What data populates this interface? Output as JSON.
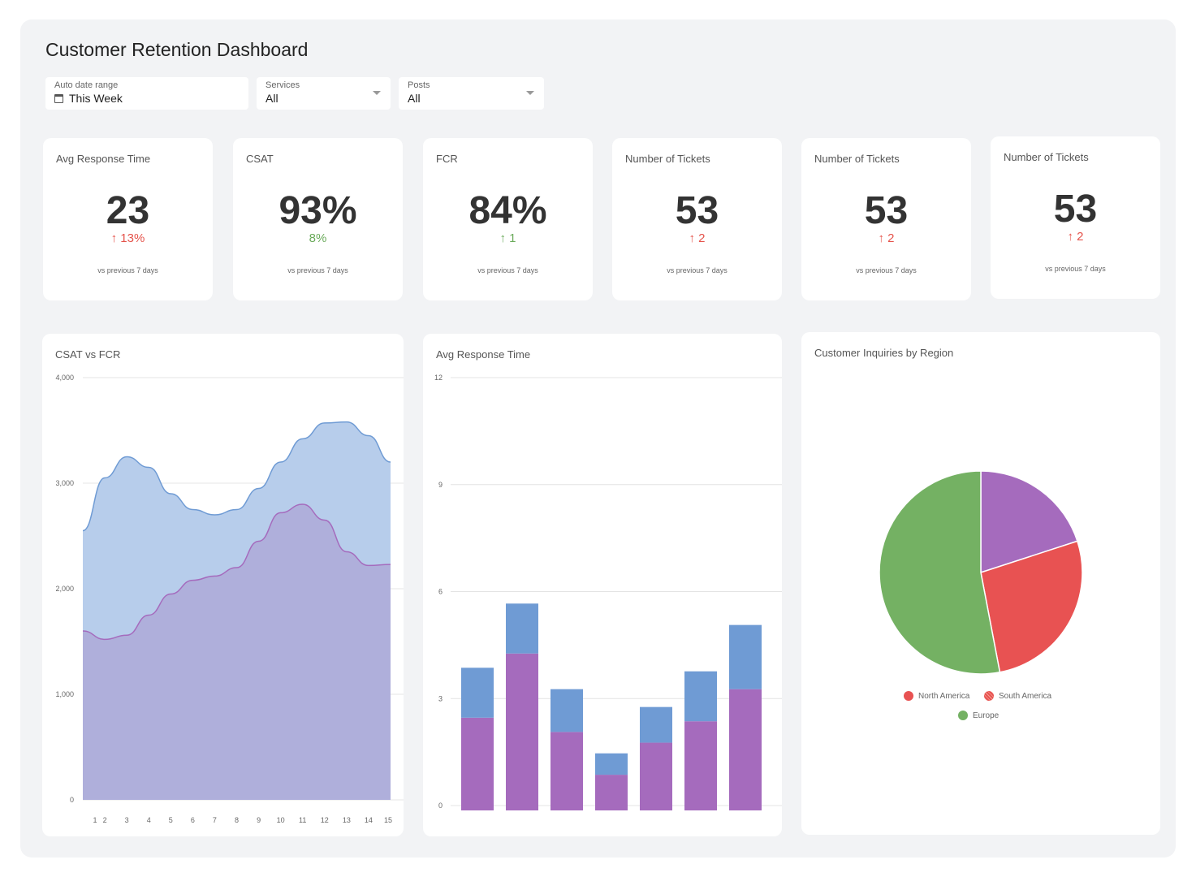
{
  "title": "Customer Retention Dashboard",
  "filters": [
    {
      "label": "Auto date range",
      "value": "This Week",
      "icon": "calendar-icon"
    },
    {
      "label": "Services",
      "value": "All"
    },
    {
      "label": "Posts",
      "value": "All"
    }
  ],
  "kpis": [
    {
      "title": "Avg Response Time",
      "value": "23",
      "delta": "↑ 13%",
      "trend": "bad",
      "sub": "vs previous 7 days"
    },
    {
      "title": "CSAT",
      "value": "93%",
      "delta": "8%",
      "trend": "good",
      "sub": "vs previous 7 days"
    },
    {
      "title": "FCR",
      "value": "84%",
      "delta": "↑ 1",
      "trend": "good",
      "sub": "vs previous 7 days"
    },
    {
      "title": "Number of Tickets",
      "value": "53",
      "delta": "↑ 2",
      "trend": "bad",
      "sub": "vs previous 7 days"
    },
    {
      "title": "Number of Tickets",
      "value": "53",
      "delta": "↑ 2",
      "trend": "bad",
      "sub": "vs previous 7 days"
    },
    {
      "title": "Number of Tickets",
      "value": "53",
      "delta": "↑ 2",
      "trend": "bad",
      "sub": "vs previous 7 days"
    }
  ],
  "colors": {
    "bad": "#e5534b",
    "good": "#6aaa5a",
    "blue": "#6f9bd4",
    "purple": "#a56bbd",
    "red": "#e85252",
    "green": "#74b163"
  },
  "chart_data": [
    {
      "type": "area",
      "title": "CSAT vs FCR",
      "x": [
        1,
        2,
        3,
        4,
        5,
        6,
        7,
        8,
        9,
        10,
        11,
        12,
        13,
        14,
        15
      ],
      "ylim": [
        0,
        4000
      ],
      "yticks": [
        "0",
        "1,000",
        "2,000",
        "3,000",
        "4,000"
      ],
      "grid": true,
      "series": [
        {
          "color": "#6f9bd4",
          "values": [
            2550,
            3050,
            3250,
            3150,
            2900,
            2750,
            2700,
            2750,
            2950,
            3200,
            3420,
            3570,
            3580,
            3450,
            3200
          ]
        },
        {
          "color": "#a56bbd",
          "values": [
            1600,
            1520,
            1560,
            1750,
            1950,
            2080,
            2120,
            2200,
            2450,
            2720,
            2800,
            2650,
            2350,
            2220,
            2230
          ]
        }
      ]
    },
    {
      "type": "bar",
      "stacked": true,
      "title": "Avg Response Time",
      "ylim": [
        0,
        12
      ],
      "yticks": [
        "0",
        "3",
        "6",
        "9",
        "12"
      ],
      "grid": true,
      "series": [
        {
          "color": "#a56bbd",
          "values": [
            2.6,
            4.4,
            2.2,
            1.0,
            1.9,
            2.5,
            3.4
          ]
        },
        {
          "color": "#6f9bd4",
          "values": [
            1.4,
            1.4,
            1.2,
            0.6,
            1.0,
            1.4,
            1.8
          ]
        }
      ]
    },
    {
      "type": "pie",
      "title": "Customer Inquiries  by Region",
      "slices": [
        {
          "color": "#a56bbd",
          "value": 20
        },
        {
          "color": "#e85252",
          "value": 27
        },
        {
          "color": "#74b163",
          "value": 53
        }
      ],
      "legend": [
        {
          "name": "North America",
          "color": "#e85252"
        },
        {
          "name": "South America",
          "color": "#e85252",
          "pattern": "hatched"
        },
        {
          "name": "Europe",
          "color": "#74b163"
        }
      ]
    }
  ]
}
